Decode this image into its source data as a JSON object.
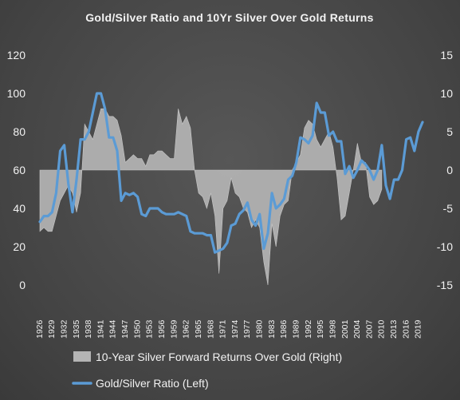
{
  "chart_data": {
    "type": "line",
    "title": "Gold/Silver Ratio and 10Yr Silver Over Gold Returns",
    "x_tick_labels": [
      "1926",
      "1929",
      "1932",
      "1935",
      "1938",
      "1941",
      "1944",
      "1947",
      "1950",
      "1953",
      "1956",
      "1959",
      "1962",
      "1965",
      "1968",
      "1971",
      "1974",
      "1977",
      "1980",
      "1983",
      "1986",
      "1989",
      "1992",
      "1995",
      "1998",
      "2001",
      "2004",
      "2007",
      "2010",
      "2013",
      "2016",
      "2019"
    ],
    "x_range": [
      1926,
      2020
    ],
    "y_left_range": [
      0,
      120
    ],
    "y_left_ticks": [
      "0",
      "20",
      "40",
      "60",
      "80",
      "100",
      "120"
    ],
    "y_right_range": [
      -15,
      15
    ],
    "y_right_ticks": [
      "-15",
      "-10",
      "-5",
      "0",
      "5",
      "10",
      "15"
    ],
    "grid": false,
    "legend_position": "bottom",
    "series": [
      {
        "name": "10-Year Silver Forward Returns Over Gold (Right)",
        "type": "area",
        "axis": "right",
        "color": "#b4b4b4",
        "x": [
          1926,
          1927,
          1928,
          1929,
          1930,
          1931,
          1932,
          1933,
          1934,
          1935,
          1936,
          1937,
          1938,
          1939,
          1940,
          1941,
          1942,
          1943,
          1944,
          1945,
          1946,
          1947,
          1948,
          1949,
          1950,
          1951,
          1952,
          1953,
          1954,
          1955,
          1956,
          1957,
          1958,
          1959,
          1960,
          1961,
          1962,
          1963,
          1964,
          1965,
          1966,
          1967,
          1968,
          1969,
          1970,
          1971,
          1972,
          1973,
          1974,
          1975,
          1976,
          1977,
          1978,
          1979,
          1980,
          1981,
          1982,
          1983,
          1984,
          1985,
          1986,
          1987,
          1988,
          1989,
          1990,
          1991,
          1992,
          1993,
          1994,
          1995,
          1996,
          1997,
          1998,
          1999,
          2000,
          2001,
          2002,
          2003,
          2004,
          2005,
          2006,
          2007,
          2008,
          2009,
          2010
        ],
        "values": [
          -8,
          -7.5,
          -8,
          -8,
          -6,
          -4,
          -3,
          -2,
          -3,
          -5.5,
          -3,
          6,
          5,
          4,
          6,
          8,
          8,
          7,
          7,
          6.5,
          4.5,
          1,
          1.5,
          2,
          1.5,
          1.5,
          0.5,
          2,
          2,
          2.5,
          2.5,
          2,
          1.5,
          1.5,
          8,
          6,
          7,
          5.5,
          0,
          -3,
          -3.5,
          -5,
          -3,
          -6,
          -13.5,
          -5,
          -4,
          -1,
          -3,
          -3.5,
          -5,
          -5.5,
          -7.5,
          -6.5,
          -7.5,
          -12,
          -15,
          -7,
          -10,
          -6,
          -4.5,
          -4,
          0,
          1,
          2,
          5.5,
          6.5,
          6,
          4,
          3,
          4,
          5,
          3,
          -1,
          -6.5,
          -6,
          -3,
          0,
          3.5,
          1,
          1,
          -3.5,
          -4.5,
          -4,
          -2.5
        ]
      },
      {
        "name": "Gold/Silver Ratio (Left)",
        "type": "line",
        "axis": "left",
        "color": "#5b9bd5",
        "x": [
          1926,
          1927,
          1928,
          1929,
          1930,
          1931,
          1932,
          1933,
          1934,
          1935,
          1936,
          1937,
          1938,
          1939,
          1940,
          1941,
          1942,
          1943,
          1944,
          1945,
          1946,
          1947,
          1948,
          1949,
          1950,
          1951,
          1952,
          1953,
          1954,
          1955,
          1956,
          1957,
          1958,
          1959,
          1960,
          1961,
          1962,
          1963,
          1964,
          1965,
          1966,
          1967,
          1968,
          1969,
          1970,
          1971,
          1972,
          1973,
          1974,
          1975,
          1976,
          1977,
          1978,
          1979,
          1980,
          1981,
          1982,
          1983,
          1984,
          1985,
          1986,
          1987,
          1988,
          1989,
          1990,
          1991,
          1992,
          1993,
          1994,
          1995,
          1996,
          1997,
          1998,
          1999,
          2000,
          2001,
          2002,
          2003,
          2004,
          2005,
          2006,
          2007,
          2008,
          2009,
          2010,
          2011,
          2012,
          2013,
          2014,
          2015,
          2016,
          2017,
          2018,
          2019,
          2020
        ],
        "values": [
          33,
          36,
          36,
          38,
          48,
          70,
          73,
          53,
          38,
          55,
          76,
          76,
          80,
          90,
          100,
          100,
          92,
          77,
          77,
          70,
          44,
          48,
          47,
          48,
          46,
          37,
          36,
          40,
          40,
          40,
          38,
          37,
          37,
          37,
          38,
          37,
          36,
          28,
          27,
          27,
          27,
          26,
          26,
          17,
          18,
          19,
          22,
          31,
          32,
          37,
          39,
          43,
          34,
          31,
          37,
          19,
          27,
          48,
          40,
          42,
          45,
          55,
          57,
          64,
          77,
          76,
          74,
          78,
          95,
          90,
          90,
          78,
          80,
          75,
          75,
          58,
          62,
          56,
          60,
          65,
          63,
          60,
          55,
          60,
          73,
          52,
          45,
          55,
          55,
          60,
          76,
          77,
          70,
          80,
          85
        ]
      }
    ]
  }
}
